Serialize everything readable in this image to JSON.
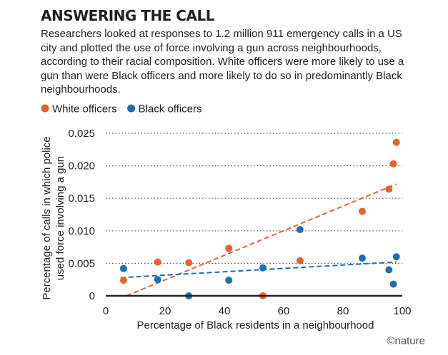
{
  "header": {
    "title": "ANSWERING THE CALL",
    "subtitle": "Researchers looked at responses to 1.2 million 911 emergency calls in a US city and plotted the use of force involving a gun across neighbourhoods, according to their racial composition. White officers were more likely to use a gun than were Black officers and more likely to do so in predominantly Black neighbourhoods."
  },
  "credit": "©nature",
  "chart_data": {
    "type": "scatter",
    "title": "",
    "xlabel": "Percentage of Black residents in a neighbourhood",
    "ylabel": "Percentage of calls in which police used force involving a gun",
    "xlim": [
      0,
      100
    ],
    "ylim": [
      0,
      0.025
    ],
    "x_ticks": [
      "0",
      "20",
      "40",
      "60",
      "80",
      "100"
    ],
    "y_ticks": [
      "0",
      "0.005",
      "0.010",
      "0.015",
      "0.020",
      "0.025"
    ],
    "grid": "horizontal dotted",
    "legend_position": "top-left",
    "series": [
      {
        "name": "White officers",
        "color": "#e8622b",
        "points": [
          {
            "x": 6,
            "y": 0.0024
          },
          {
            "x": 17.5,
            "y": 0.0052
          },
          {
            "x": 28,
            "y": 0.0051
          },
          {
            "x": 41.5,
            "y": 0.0073
          },
          {
            "x": 53,
            "y": 0.0
          },
          {
            "x": 65.5,
            "y": 0.0054
          },
          {
            "x": 86.5,
            "y": 0.013
          },
          {
            "x": 95.5,
            "y": 0.0164
          },
          {
            "x": 97,
            "y": 0.0203
          },
          {
            "x": 98,
            "y": 0.0236
          }
        ],
        "trend": {
          "x": [
            7,
            98
          ],
          "y": [
            0.0,
            0.0172
          ]
        }
      },
      {
        "name": "Black officers",
        "color": "#1e6fae",
        "points": [
          {
            "x": 6,
            "y": 0.0042
          },
          {
            "x": 17.5,
            "y": 0.0025
          },
          {
            "x": 28,
            "y": 0.0
          },
          {
            "x": 41.5,
            "y": 0.0024
          },
          {
            "x": 53,
            "y": 0.0043
          },
          {
            "x": 65.5,
            "y": 0.0102
          },
          {
            "x": 86.5,
            "y": 0.0058
          },
          {
            "x": 95.5,
            "y": 0.004
          },
          {
            "x": 97,
            "y": 0.0018
          },
          {
            "x": 98,
            "y": 0.006
          }
        ],
        "trend": {
          "x": [
            5,
            98
          ],
          "y": [
            0.0028,
            0.0052
          ]
        }
      }
    ]
  }
}
